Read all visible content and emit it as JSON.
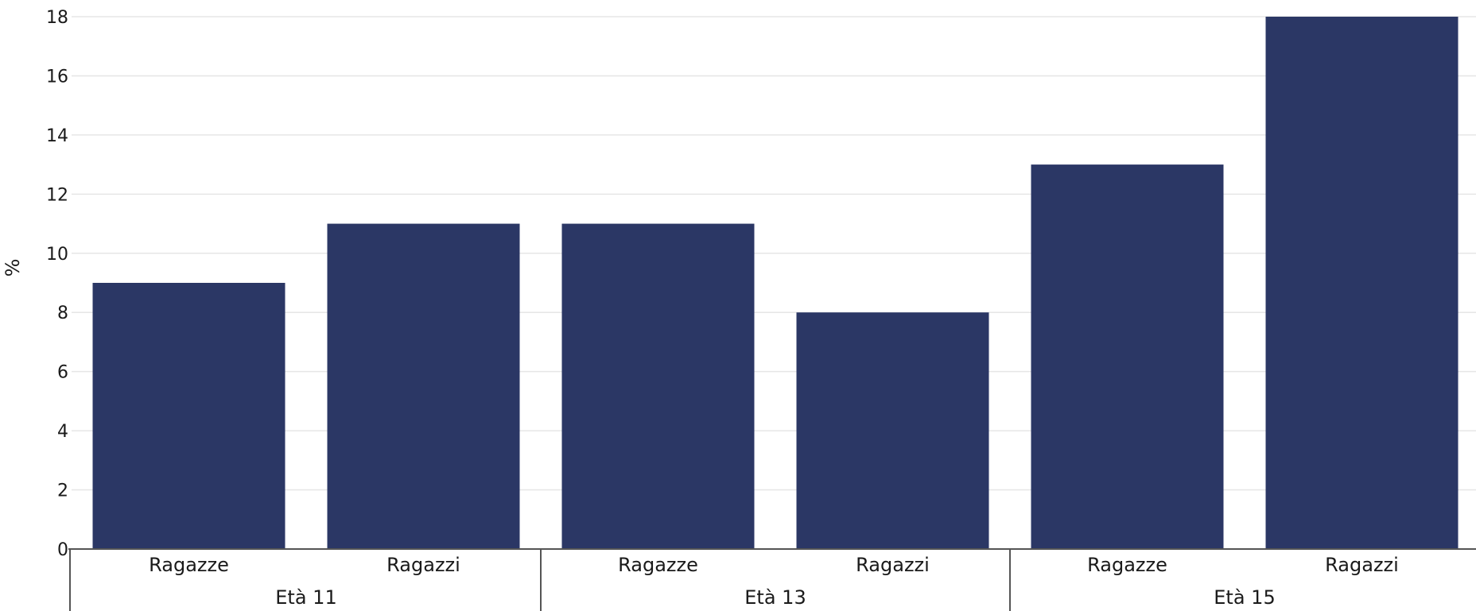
{
  "chart_data": {
    "type": "bar",
    "ylabel": "%",
    "ylim": [
      0,
      18
    ],
    "yticks": [
      0,
      2,
      4,
      6,
      8,
      10,
      12,
      14,
      16,
      18
    ],
    "grid": true,
    "bar_color": "#2b3765",
    "groups": [
      {
        "label": "Età 11",
        "categories": [
          "Ragazze",
          "Ragazzi"
        ],
        "values": [
          9,
          11
        ]
      },
      {
        "label": "Età 13",
        "categories": [
          "Ragazze",
          "Ragazzi"
        ],
        "values": [
          11,
          8
        ]
      },
      {
        "label": "Età 15",
        "categories": [
          "Ragazze",
          "Ragazzi"
        ],
        "values": [
          13,
          18
        ]
      }
    ]
  }
}
